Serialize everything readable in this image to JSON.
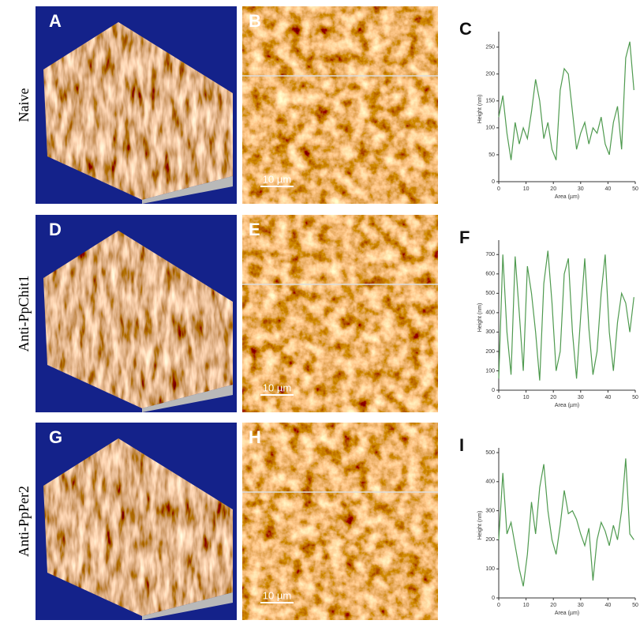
{
  "row_labels": [
    "Naive",
    "Anti-PpChit1",
    "Anti-PpPer2"
  ],
  "panel_letters": [
    "A",
    "B",
    "C",
    "D",
    "E",
    "F",
    "G",
    "H",
    "I"
  ],
  "scale_bar_labels": [
    "10 µm",
    "10 µm",
    "10 µm"
  ],
  "chart_data": [
    {
      "type": "line",
      "color": "#4f9a4f",
      "xlabel": "Area (µm)",
      "ylabel": "Height (nm)",
      "x": [
        0,
        1.5,
        3,
        4.5,
        6,
        7.5,
        9,
        10.5,
        12,
        13.5,
        15,
        16.5,
        18,
        19.5,
        21,
        22.5,
        24,
        25.5,
        27,
        28.5,
        30,
        31.5,
        33,
        34.5,
        36,
        37.5,
        39,
        40.5,
        42,
        43.5,
        45,
        46.5,
        48,
        49.5
      ],
      "values": [
        120,
        160,
        90,
        40,
        110,
        70,
        100,
        80,
        130,
        190,
        150,
        80,
        110,
        60,
        40,
        170,
        210,
        200,
        130,
        60,
        90,
        110,
        70,
        100,
        90,
        120,
        70,
        50,
        110,
        140,
        60,
        230,
        260,
        170
      ],
      "xlim": [
        0,
        50
      ],
      "xticks": [
        0,
        10,
        20,
        30,
        40,
        50
      ],
      "ylim": [
        0,
        270
      ],
      "yticks": [
        0,
        50,
        100,
        150,
        200,
        250
      ]
    },
    {
      "type": "line",
      "color": "#4f9a4f",
      "xlabel": "Area (µm)",
      "ylabel": "Height (nm)",
      "x": [
        0,
        1.5,
        3,
        4.5,
        6,
        7.5,
        9,
        10.5,
        12,
        13.5,
        15,
        16.5,
        18,
        19.5,
        21,
        22.5,
        24,
        25.5,
        27,
        28.5,
        30,
        31.5,
        33,
        34.5,
        36,
        37.5,
        39,
        40.5,
        42,
        43.5,
        45,
        46.5,
        48,
        49.5
      ],
      "values": [
        60,
        700,
        300,
        80,
        690,
        400,
        100,
        640,
        500,
        300,
        50,
        550,
        720,
        450,
        100,
        200,
        600,
        680,
        300,
        60,
        380,
        680,
        320,
        80,
        200,
        500,
        700,
        300,
        100,
        350,
        500,
        450,
        300,
        480
      ],
      "xlim": [
        0,
        50
      ],
      "xticks": [
        0,
        10,
        20,
        30,
        40,
        50
      ],
      "ylim": [
        0,
        750
      ],
      "yticks": [
        0,
        100,
        200,
        300,
        400,
        500,
        600,
        700
      ]
    },
    {
      "type": "line",
      "color": "#4f9a4f",
      "xlabel": "Area (µm)",
      "ylabel": "Height (nm)",
      "x": [
        0,
        1.5,
        3,
        4.5,
        6,
        7.5,
        9,
        10.5,
        12,
        13.5,
        15,
        16.5,
        18,
        19.5,
        21,
        22.5,
        24,
        25.5,
        27,
        28.5,
        30,
        31.5,
        33,
        34.5,
        36,
        37.5,
        39,
        40.5,
        42,
        43.5,
        45,
        46.5,
        48,
        49.5
      ],
      "values": [
        200,
        430,
        220,
        260,
        180,
        100,
        40,
        150,
        330,
        220,
        380,
        460,
        300,
        200,
        150,
        250,
        370,
        290,
        300,
        270,
        220,
        180,
        240,
        60,
        200,
        260,
        230,
        180,
        250,
        200,
        300,
        480,
        220,
        200
      ],
      "xlim": [
        0,
        50
      ],
      "xticks": [
        0,
        10,
        20,
        30,
        40,
        50
      ],
      "ylim": [
        0,
        500
      ],
      "yticks": [
        0,
        100,
        200,
        300,
        400,
        500
      ]
    }
  ]
}
